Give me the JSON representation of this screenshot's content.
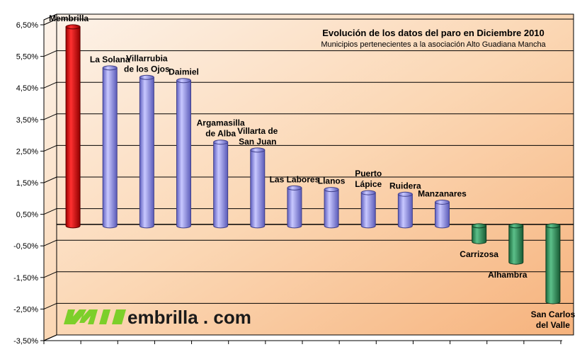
{
  "chart_data": {
    "type": "bar",
    "title": "Evolución de los datos del paro en Diciembre 2010",
    "subtitle": "Municipios pertenecientes a la asociación Alto Guadiana Mancha",
    "ylim": [
      -3.5,
      6.5
    ],
    "y_ticks": [
      "6,50%",
      "5,50%",
      "4,50%",
      "3,50%",
      "2,50%",
      "1,50%",
      "0,50%",
      "-0,50%",
      "-1,50%",
      "-2,50%",
      "-3,50%"
    ],
    "grid": true,
    "categories": [
      [
        "Membrilla"
      ],
      [
        "La Solana"
      ],
      [
        "Villarrubia",
        "de los Ojos"
      ],
      [
        "Daimiel"
      ],
      [
        "Argamasilla",
        "de Alba"
      ],
      [
        "Villarta de",
        "San Juan"
      ],
      [
        "Las Labores"
      ],
      [
        "Llanos"
      ],
      [
        "Puerto",
        "Lápice"
      ],
      [
        "Ruidera"
      ],
      [
        "Manzanares"
      ],
      [
        "Carrizosa"
      ],
      [
        "Alhambra"
      ],
      [
        "San Carlos",
        "del Valle"
      ]
    ],
    "values": [
      6.3,
      5.0,
      4.7,
      4.6,
      2.65,
      2.4,
      1.2,
      1.15,
      1.05,
      1.0,
      0.75,
      -0.5,
      -1.15,
      -2.4
    ],
    "colors": {
      "highlight": "#e00000",
      "positive": "#8f8fe8",
      "negative": "#2f8c57"
    }
  },
  "logo": {
    "prefix": "M",
    "text": "embrilla . com"
  }
}
